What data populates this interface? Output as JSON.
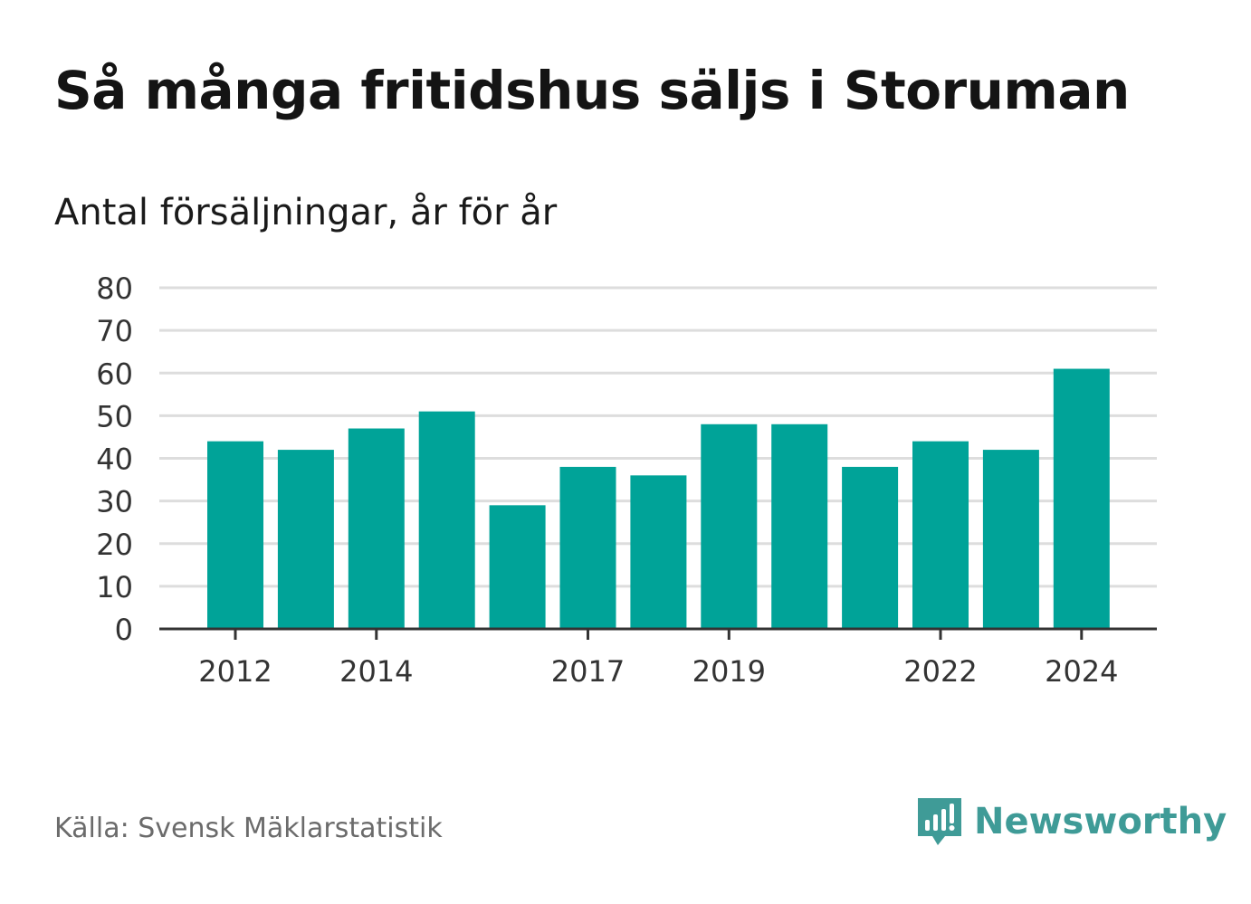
{
  "title": "Så många fritidshus säljs i Storuman",
  "subtitle": "Antal försäljningar, år för år",
  "source": "Källa: Svensk Mäklarstatistik",
  "brand": {
    "name": "Newsworthy",
    "icon": "newsworthy-logo-icon",
    "color": "#3f9b97"
  },
  "colors": {
    "bar": "#00a398",
    "grid": "#dddddd",
    "axis": "#333333",
    "tick_text": "#333333"
  },
  "chart_data": {
    "type": "bar",
    "categories": [
      "2012",
      "2013",
      "2014",
      "2015",
      "2016",
      "2017",
      "2018",
      "2019",
      "2020",
      "2021",
      "2022",
      "2023",
      "2024"
    ],
    "values": [
      44,
      42,
      47,
      51,
      29,
      38,
      36,
      48,
      48,
      38,
      44,
      42,
      61
    ],
    "x_tick_labels": [
      "2012",
      "2014",
      "2017",
      "2019",
      "2022",
      "2024"
    ],
    "y_ticks": [
      0,
      10,
      20,
      30,
      40,
      50,
      60,
      70,
      80
    ],
    "ylim": [
      0,
      80
    ],
    "grid": true,
    "xlabel": "",
    "ylabel": ""
  }
}
